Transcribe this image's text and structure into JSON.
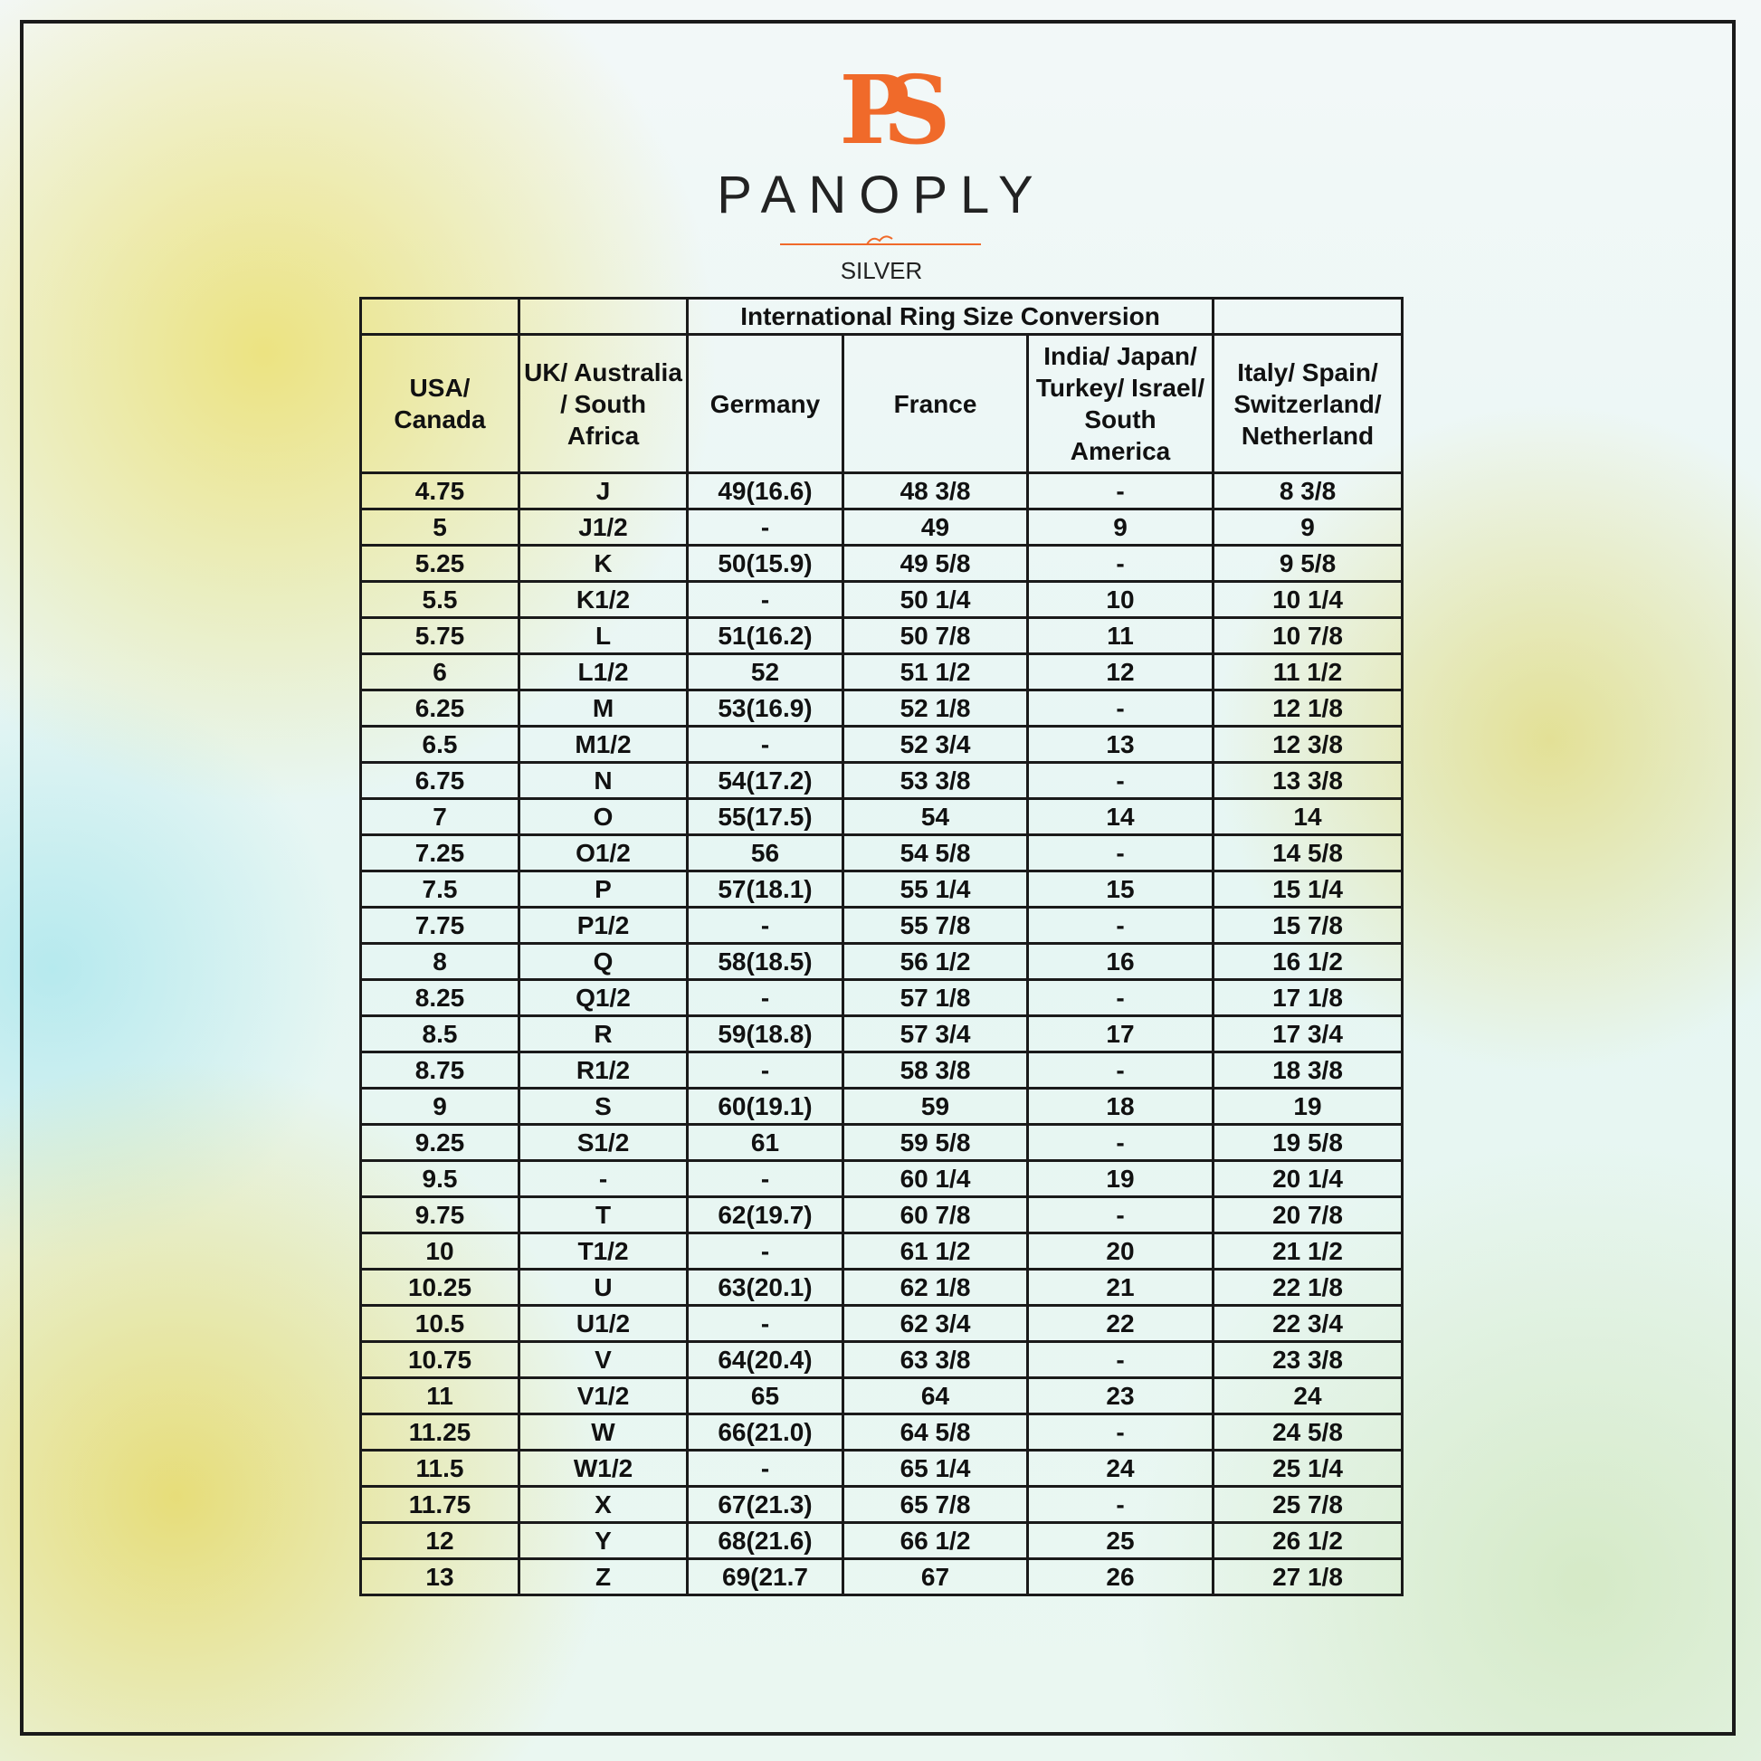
{
  "header": {
    "logo": "PS",
    "brand": "PANOPLY",
    "subbrand": "SILVER"
  },
  "table": {
    "title": "International Ring Size Conversion",
    "columns": [
      "USA/ Canada",
      "UK/ Australia / South Africa",
      "Germany",
      "France",
      "India/ Japan/ Turkey/ Israel/ South America",
      "Italy/ Spain/ Switzerland/ Netherland"
    ],
    "rows": [
      [
        "4.75",
        "J",
        "49(16.6)",
        "48 3/8",
        "-",
        "8 3/8"
      ],
      [
        "5",
        "J1/2",
        "-",
        "49",
        "9",
        "9"
      ],
      [
        "5.25",
        "K",
        "50(15.9)",
        "49 5/8",
        "-",
        "9 5/8"
      ],
      [
        "5.5",
        "K1/2",
        "-",
        "50 1/4",
        "10",
        "10 1/4"
      ],
      [
        "5.75",
        "L",
        "51(16.2)",
        "50 7/8",
        "11",
        "10 7/8"
      ],
      [
        "6",
        "L1/2",
        "52",
        "51 1/2",
        "12",
        "11 1/2"
      ],
      [
        "6.25",
        "M",
        "53(16.9)",
        "52 1/8",
        "-",
        "12 1/8"
      ],
      [
        "6.5",
        "M1/2",
        "-",
        "52 3/4",
        "13",
        "12 3/8"
      ],
      [
        "6.75",
        "N",
        "54(17.2)",
        "53 3/8",
        "-",
        "13 3/8"
      ],
      [
        "7",
        "O",
        "55(17.5)",
        "54",
        "14",
        "14"
      ],
      [
        "7.25",
        "O1/2",
        "56",
        "54 5/8",
        "-",
        "14 5/8"
      ],
      [
        "7.5",
        "P",
        "57(18.1)",
        "55 1/4",
        "15",
        "15 1/4"
      ],
      [
        "7.75",
        "P1/2",
        "-",
        "55 7/8",
        "-",
        "15 7/8"
      ],
      [
        "8",
        "Q",
        "58(18.5)",
        "56 1/2",
        "16",
        "16 1/2"
      ],
      [
        "8.25",
        "Q1/2",
        "-",
        "57 1/8",
        "-",
        "17 1/8"
      ],
      [
        "8.5",
        "R",
        "59(18.8)",
        "57 3/4",
        "17",
        "17 3/4"
      ],
      [
        "8.75",
        "R1/2",
        "-",
        "58 3/8",
        "-",
        "18 3/8"
      ],
      [
        "9",
        "S",
        "60(19.1)",
        "59",
        "18",
        "19"
      ],
      [
        "9.25",
        "S1/2",
        "61",
        "59 5/8",
        "-",
        "19 5/8"
      ],
      [
        "9.5",
        "-",
        "-",
        "60 1/4",
        "19",
        "20 1/4"
      ],
      [
        "9.75",
        "T",
        "62(19.7)",
        "60 7/8",
        "-",
        "20 7/8"
      ],
      [
        "10",
        "T1/2",
        "-",
        "61 1/2",
        "20",
        "21 1/2"
      ],
      [
        "10.25",
        "U",
        "63(20.1)",
        "62 1/8",
        "21",
        "22 1/8"
      ],
      [
        "10.5",
        "U1/2",
        "-",
        "62 3/4",
        "22",
        "22 3/4"
      ],
      [
        "10.75",
        "V",
        "64(20.4)",
        "63 3/8",
        "-",
        "23 3/8"
      ],
      [
        "11",
        "V1/2",
        "65",
        "64",
        "23",
        "24"
      ],
      [
        "11.25",
        "W",
        "66(21.0)",
        "64 5/8",
        "-",
        "24 5/8"
      ],
      [
        "11.5",
        "W1/2",
        "-",
        "65 1/4",
        "24",
        "25 1/4"
      ],
      [
        "11.75",
        "X",
        "67(21.3)",
        "65 7/8",
        "-",
        "25 7/8"
      ],
      [
        "12",
        "Y",
        "68(21.6)",
        "66 1/2",
        "25",
        "26 1/2"
      ],
      [
        "13",
        "Z",
        "69(21.7",
        "67",
        "26",
        "27 1/8"
      ]
    ]
  }
}
